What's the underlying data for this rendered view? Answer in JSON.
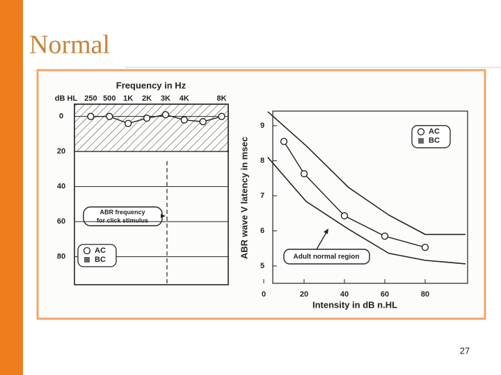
{
  "title": "Normal",
  "page_number": "27",
  "chart_data": [
    {
      "type": "line",
      "title": "Frequency in Hz",
      "y_label": "dB HL",
      "categories": [
        "250",
        "500",
        "1K",
        "2K",
        "3K",
        "4K",
        null,
        "8K"
      ],
      "series": [
        {
          "name": "AC",
          "color": "#222222",
          "marker": "circle",
          "values": [
            0,
            0,
            4,
            1,
            -1,
            2,
            3,
            0
          ]
        },
        {
          "name": "BC",
          "color": "#666666",
          "marker": "square",
          "values": [
            null,
            null,
            null,
            null,
            null,
            null,
            null,
            null
          ]
        }
      ],
      "ylim": [
        -7,
        96
      ],
      "yticks": [
        0,
        20,
        40,
        60,
        80
      ],
      "y_inverted": true,
      "annotation": [
        "ABR frequency",
        "for click stimulus"
      ],
      "legend": "lower left"
    },
    {
      "type": "line",
      "x_label": "Intensity in dB n.HL",
      "y_label": "ABR wave V latency in msec",
      "x": [
        10,
        20,
        40,
        60,
        80
      ],
      "series": [
        {
          "name": "AC",
          "color": "#222222",
          "marker": "circle",
          "values": [
            8.55,
            7.63,
            6.43,
            5.85,
            5.53
          ]
        },
        {
          "name": "BC",
          "color": "#666666",
          "marker": "square",
          "values": [
            null,
            null,
            null,
            null,
            null
          ]
        }
      ],
      "xlim": [
        0,
        100
      ],
      "xticks": [
        0,
        20,
        40,
        60,
        80
      ],
      "ylim": [
        4.5,
        9.4
      ],
      "yticks": [
        5,
        6,
        7,
        8,
        9
      ],
      "region": {
        "label": "Adult normal region",
        "x": [
          2,
          21,
          42,
          62,
          80,
          100
        ],
        "upper": [
          9.4,
          8.43,
          7.24,
          6.45,
          5.9,
          5.9
        ],
        "lower": [
          8.1,
          6.84,
          6.05,
          5.36,
          5.16,
          5.06
        ]
      },
      "legend": "upper right"
    }
  ]
}
